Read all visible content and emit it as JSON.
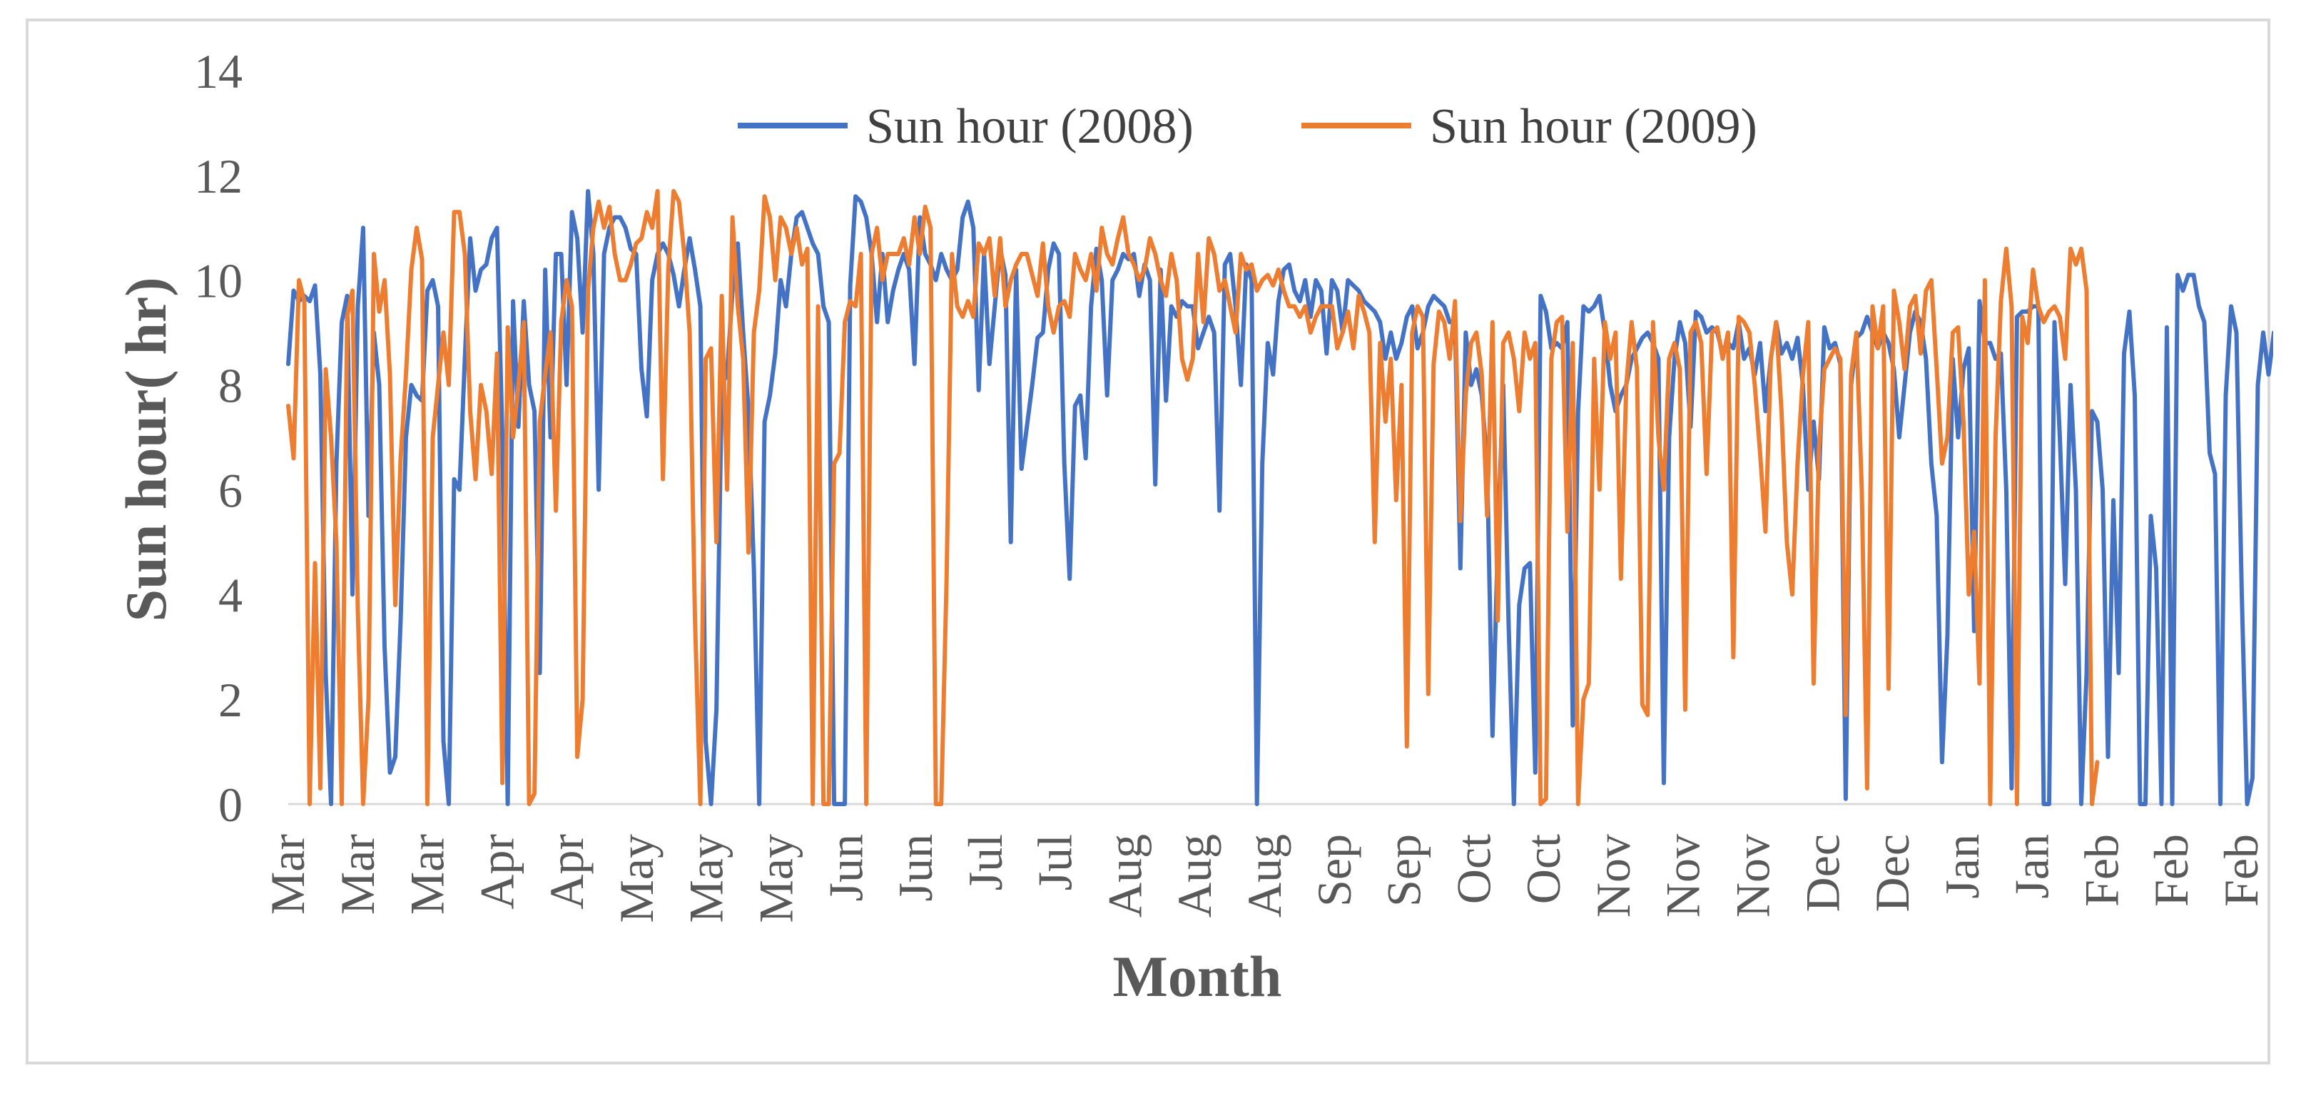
{
  "chart_data": {
    "type": "line",
    "title": "",
    "xlabel": "Month",
    "ylabel": "Sun hour( hr)",
    "ylim": [
      0,
      14
    ],
    "yticks": [
      "0",
      "2",
      "4",
      "6",
      "8",
      "10",
      "12",
      "14"
    ],
    "grid": false,
    "legend_position": "top-center",
    "x_tick_labels": [
      "Mar",
      "Mar",
      "Mar",
      "Apr",
      "Apr",
      "May",
      "May",
      "May",
      "Jun",
      "Jun",
      "Jul",
      "Jul",
      "Aug",
      "Aug",
      "Aug",
      "Sep",
      "Sep",
      "Oct",
      "Oct",
      "Nov",
      "Nov",
      "Nov",
      "Dec",
      "Dec",
      "Jan",
      "Jan",
      "Feb",
      "Feb",
      "Feb"
    ],
    "days": 366,
    "series": [
      {
        "name": "Sun hour (2008)",
        "color": "#4472C4",
        "values": [
          8.4,
          9.8,
          9.6,
          9.7,
          9.6,
          9.9,
          8.2,
          2.5,
          0,
          6.5,
          9.2,
          9.7,
          4,
          9.5,
          11,
          5.5,
          9,
          8,
          3,
          0.6,
          0.9,
          3.5,
          7,
          8,
          7.8,
          7.7,
          9.8,
          10,
          9.5,
          1.2,
          0,
          6.2,
          6,
          8.5,
          10.8,
          9.8,
          10.2,
          10.3,
          10.8,
          11,
          7,
          0,
          9.6,
          7.2,
          9.6,
          8,
          7.5,
          2.5,
          10.2,
          7,
          10.5,
          10.5,
          8,
          11.3,
          10.8,
          9,
          11.7,
          10.5,
          6,
          10.5,
          11,
          11.2,
          11.2,
          11,
          10.6,
          10.5,
          8.3,
          7.4,
          10,
          10.5,
          10.7,
          10.5,
          10.1,
          9.5,
          10.2,
          10.8,
          10.2,
          9.5,
          1.2,
          0,
          1.8,
          8,
          8.2,
          9.8,
          10.7,
          9,
          7.5,
          4.5,
          0,
          7.3,
          7.8,
          8.6,
          10,
          9.5,
          10.5,
          11.2,
          11.3,
          11,
          10.7,
          10.5,
          9.5,
          9.2,
          0,
          0,
          0,
          9.9,
          11.6,
          11.5,
          11.2,
          10.5,
          9.2,
          10.5,
          9.2,
          9.8,
          10.2,
          10.5,
          10.2,
          8.4,
          11.2,
          10.5,
          10.3,
          10,
          10.5,
          10.2,
          10,
          10.2,
          11.2,
          11.5,
          11,
          7.9,
          10.5,
          8.4,
          9.5,
          10.6,
          10.1,
          5,
          10.2,
          6.4,
          7.2,
          8,
          8.9,
          9,
          10.2,
          10.7,
          10.5,
          6.5,
          4.3,
          7.6,
          7.8,
          6.6,
          9.5,
          10.6,
          10,
          7.8,
          10,
          10.2,
          10.5,
          10.4,
          10.5,
          9.7,
          10.3,
          10,
          6.1,
          10.2,
          7.7,
          9.5,
          9.3,
          9.6,
          9.5,
          9.5,
          8.7,
          9,
          9.3,
          9,
          5.6,
          10.3,
          10.5,
          9.5,
          8,
          10.3,
          10,
          0,
          6.5,
          8.8,
          8.2,
          9.6,
          10.2,
          10.3,
          9.8,
          9.6,
          10,
          9.3,
          10,
          9.8,
          8.6,
          10,
          9.8,
          9,
          10,
          9.9,
          9.8,
          9.6,
          9.5,
          9.4,
          9.2,
          8.5,
          9,
          8.5,
          8.8,
          9.3,
          9.5,
          8.7,
          9,
          9.5,
          9.7,
          9.6,
          9.5,
          9.2,
          9.2,
          4.5,
          9,
          8,
          8.3,
          7.8,
          6.5,
          1.3,
          5,
          8,
          3.5,
          0,
          3.8,
          4.5,
          4.6,
          0.6,
          9.7,
          9.4,
          8.7,
          8.8,
          8.7,
          9.2,
          1.5,
          7.5,
          9.5,
          9.4,
          9.5,
          9.7,
          9,
          8,
          7.5,
          7.8,
          8,
          8.5,
          8.7,
          8.9,
          9,
          8.8,
          8.5,
          0.4,
          7,
          8.5,
          9.2,
          8.8,
          7.2,
          9.4,
          9.3,
          9,
          9.1,
          9,
          8.6,
          8.8,
          8.7,
          9.2,
          8.5,
          8.7,
          8.2,
          8.8,
          7.5,
          8.5,
          9.2,
          8.6,
          8.8,
          8.5,
          8.9,
          8,
          6,
          7.3,
          6.2,
          9.1,
          8.7,
          8.8,
          8.4,
          0.1,
          8,
          8.9,
          9,
          9.3,
          9,
          8.7,
          9,
          8.8,
          8.3,
          7,
          8,
          9,
          9.4,
          9.2,
          8.5,
          6.5,
          5.5,
          0.8,
          3.2,
          8.5,
          7,
          8.3,
          8.7,
          3.3,
          9.6,
          8.8,
          8.8,
          8.5,
          8.6,
          6,
          0.3,
          9.3,
          9.4,
          9.4,
          9.5,
          9.5,
          0,
          0,
          9.2,
          7,
          4.2,
          8,
          6,
          0,
          2.5,
          7.5,
          7.3,
          6,
          0.9,
          5.8,
          2.5,
          8.6,
          9.4,
          7.8,
          0,
          0,
          5.5,
          4.5,
          0,
          9.1,
          0,
          10.1,
          9.8,
          10.1,
          10.1,
          9.5,
          9.2,
          6.7,
          6.3,
          0,
          7.8,
          9.5,
          9,
          4,
          0,
          0.5,
          8,
          9,
          8.2,
          9
        ]
      },
      {
        "name": "Sun hour (2009)",
        "color": "#ED7D31",
        "values": [
          7.6,
          6.6,
          10,
          9.6,
          0,
          4.6,
          0.3,
          8.3,
          7,
          5,
          0,
          9.3,
          9.8,
          3.7,
          0,
          2,
          10.5,
          9.4,
          10,
          8.2,
          3.8,
          6.6,
          8.2,
          10.2,
          11,
          10.4,
          0,
          7,
          8,
          9,
          8,
          11.3,
          11.3,
          10.5,
          7.5,
          6.2,
          8,
          7.5,
          6.3,
          8.6,
          0.4,
          9.1,
          7,
          8,
          9.2,
          0,
          0.2,
          7.3,
          8.2,
          9,
          5.6,
          9.2,
          10,
          9.5,
          0.9,
          2,
          9.8,
          11,
          11.5,
          11,
          11.4,
          10.5,
          10,
          10,
          10.3,
          10.7,
          10.8,
          11.3,
          11,
          11.7,
          6.2,
          10.2,
          11.7,
          11.5,
          10.5,
          9,
          3.5,
          0,
          8.5,
          8.7,
          5,
          9.7,
          6,
          11.2,
          9.5,
          8.5,
          4.8,
          9,
          9.8,
          11.6,
          11.2,
          10,
          11.2,
          11,
          10.5,
          11,
          10.3,
          10.6,
          0,
          9.5,
          0,
          0,
          6.5,
          6.7,
          9.2,
          9.6,
          9.5,
          10.5,
          0,
          10.5,
          11,
          10,
          10.5,
          10.5,
          10.5,
          10.8,
          10.3,
          11.2,
          10.5,
          11.4,
          11,
          0,
          0,
          4.3,
          10.5,
          9.5,
          9.3,
          9.6,
          9.3,
          10.7,
          10.5,
          10.8,
          9.7,
          10.8,
          9.5,
          10,
          10.3,
          10.5,
          10.5,
          10.1,
          9.7,
          10.7,
          9.5,
          9,
          9.5,
          9.6,
          9.3,
          10.5,
          10.2,
          10,
          10.5,
          9.8,
          11,
          10.5,
          10.3,
          10.8,
          11.2,
          10.5,
          10.3,
          10,
          10.2,
          10.8,
          10.5,
          10,
          9.7,
          10.5,
          10,
          8.5,
          8.1,
          8.5,
          10.5,
          9.2,
          10.8,
          10.5,
          9.8,
          10,
          9.5,
          9,
          10.5,
          10.2,
          10.3,
          9.8,
          10,
          10.1,
          9.9,
          10.2,
          9.8,
          9.5,
          9.5,
          9.3,
          9.5,
          9,
          9.3,
          9.5,
          9.5,
          9.5,
          8.7,
          9,
          9.4,
          8.7,
          9.7,
          9.4,
          9,
          5,
          8.8,
          7.3,
          8.5,
          5.8,
          8,
          1.1,
          9,
          9.5,
          9.3,
          2.1,
          8.4,
          9.4,
          9.2,
          8.5,
          9.6,
          5.4,
          7.8,
          8.8,
          9,
          8.2,
          5.5,
          9.2,
          3.5,
          8.8,
          9,
          8.5,
          7.5,
          9,
          8.5,
          8.8,
          0,
          0.1,
          8.5,
          9.2,
          9.3,
          5.2,
          8.8,
          0,
          2,
          2.3,
          8.5,
          6,
          9.2,
          8.5,
          9,
          4.3,
          8,
          9.2,
          8.3,
          1.9,
          1.7,
          9.2,
          7,
          6,
          8.5,
          8.8,
          8.3,
          1.8,
          9,
          9.2,
          8.8,
          6.3,
          9,
          9.1,
          8.5,
          9,
          2.8,
          9.3,
          9.2,
          9,
          8,
          6.7,
          5.2,
          8.5,
          9.2,
          7.5,
          5,
          4,
          6.5,
          8.2,
          9.2,
          2.3,
          6.8,
          8.3,
          8.5,
          8.7,
          8.5,
          1.7,
          8.2,
          9,
          6,
          0.3,
          9.5,
          8.7,
          9.5,
          2.2,
          9.8,
          9.2,
          8.3,
          9.5,
          9.7,
          8.6,
          9.8,
          10,
          8.3,
          6.5,
          7,
          9,
          9.1,
          7.3,
          4,
          5.2,
          2.3,
          10,
          0,
          7,
          9.6,
          10.6,
          9.5,
          0,
          9.3,
          8.8,
          10.2,
          9.5,
          9.2,
          9.4,
          9.5,
          9.3,
          8.5,
          10.6,
          10.3,
          10.6,
          9.8,
          0,
          0.8
        ]
      }
    ]
  }
}
